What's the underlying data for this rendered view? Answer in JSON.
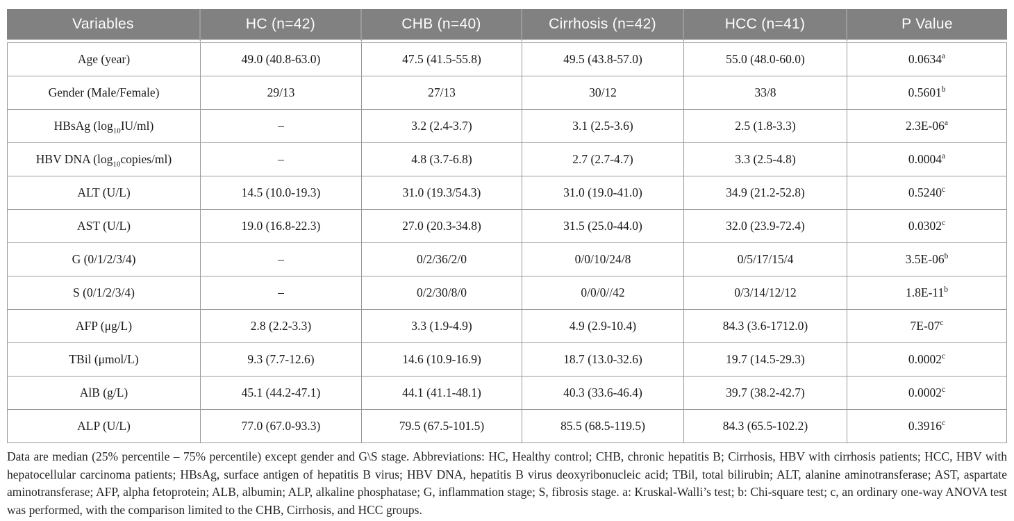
{
  "style": {
    "header_bg": "#818181",
    "header_text": "#ffffff",
    "grid_line": "#999999",
    "body_text": "#1a1a1a"
  },
  "table": {
    "columns": [
      "Variables",
      "HC (n=42)",
      "CHB (n=40)",
      "Cirrhosis (n=42)",
      "HCC (n=41)",
      "P Value"
    ],
    "rows": [
      {
        "label": "Age (year)",
        "values": [
          "49.0 (40.8-63.0)",
          "47.5 (41.5-55.8)",
          "49.5 (43.8-57.0)",
          "55.0 (48.0-60.0)"
        ],
        "p": "0.0634",
        "p_sup": "a"
      },
      {
        "label": "Gender (Male/Female)",
        "values": [
          "29/13",
          "27/13",
          "30/12",
          "33/8"
        ],
        "p": "0.5601",
        "p_sup": "b"
      },
      {
        "label": "HBsAg (log~10~IU/ml)",
        "values": [
          "–",
          "3.2 (2.4-3.7)",
          "3.1 (2.5-3.6)",
          "2.5 (1.8-3.3)"
        ],
        "p": "2.3E-06",
        "p_sup": "a"
      },
      {
        "label": "HBV DNA (log~10~copies/ml)",
        "values": [
          "–",
          "4.8 (3.7-6.8)",
          "2.7 (2.7-4.7)",
          "3.3 (2.5-4.8)"
        ],
        "p": "0.0004",
        "p_sup": "a"
      },
      {
        "label": "ALT (U/L)",
        "values": [
          "14.5 (10.0-19.3)",
          "31.0 (19.3/54.3)",
          "31.0 (19.0-41.0)",
          "34.9 (21.2-52.8)"
        ],
        "p": "0.5240",
        "p_sup": "c"
      },
      {
        "label": "AST (U/L)",
        "values": [
          "19.0 (16.8-22.3)",
          "27.0 (20.3-34.8)",
          "31.5 (25.0-44.0)",
          "32.0 (23.9-72.4)"
        ],
        "p": "0.0302",
        "p_sup": "c"
      },
      {
        "label": "G (0/1/2/3/4)",
        "values": [
          "–",
          "0/2/36/2/0",
          "0/0/10/24/8",
          "0/5/17/15/4"
        ],
        "p": "3.5E-06",
        "p_sup": "b"
      },
      {
        "label": "S (0/1/2/3/4)",
        "values": [
          "–",
          "0/2/30/8/0",
          "0/0/0//42",
          "0/3/14/12/12"
        ],
        "p": "1.8E-11",
        "p_sup": "b"
      },
      {
        "label": "AFP (μg/L)",
        "values": [
          "2.8 (2.2-3.3)",
          "3.3 (1.9-4.9)",
          "4.9 (2.9-10.4)",
          "84.3 (3.6-1712.0)"
        ],
        "p": "7E-07",
        "p_sup": "c"
      },
      {
        "label": "TBil (μmol/L)",
        "values": [
          "9.3 (7.7-12.6)",
          "14.6 (10.9-16.9)",
          "18.7 (13.0-32.6)",
          "19.7 (14.5-29.3)"
        ],
        "p": "0.0002",
        "p_sup": "c"
      },
      {
        "label": "AlB (g/L)",
        "values": [
          "45.1 (44.2-47.1)",
          "44.1 (41.1-48.1)",
          "40.3 (33.6-46.4)",
          "39.7 (38.2-42.7)"
        ],
        "p": "0.0002",
        "p_sup": "c"
      },
      {
        "label": "ALP (U/L)",
        "values": [
          "77.0 (67.0-93.3)",
          "79.5 (67.5-101.5)",
          "85.5 (68.5-119.5)",
          "84.3 (65.5-102.2)"
        ],
        "p": "0.3916",
        "p_sup": "c"
      }
    ]
  },
  "footnote": {
    "text": "Data are median (25% percentile – 75% percentile) except gender and G\\S stage. Abbreviations: HC, Healthy control; CHB, chronic hepatitis B; Cirrhosis, HBV with cirrhosis patients; HCC, HBV with hepatocellular carcinoma patients; HBsAg, surface antigen of hepatitis B virus; HBV DNA, hepatitis B virus deoxyribonucleic acid; TBil, total bilirubin; ALT, alanine aminotransferase; AST, aspartate aminotransferase; AFP, alpha fetoprotein; ALB, albumin; ALP, alkaline phosphatase; G, inflammation stage; S, fibrosis stage. a: Kruskal-Walli’s test; b: Chi-square test; c, an ordinary one-way ANOVA test was performed, with the comparison limited to the CHB, Cirrhosis, and HCC groups."
  }
}
